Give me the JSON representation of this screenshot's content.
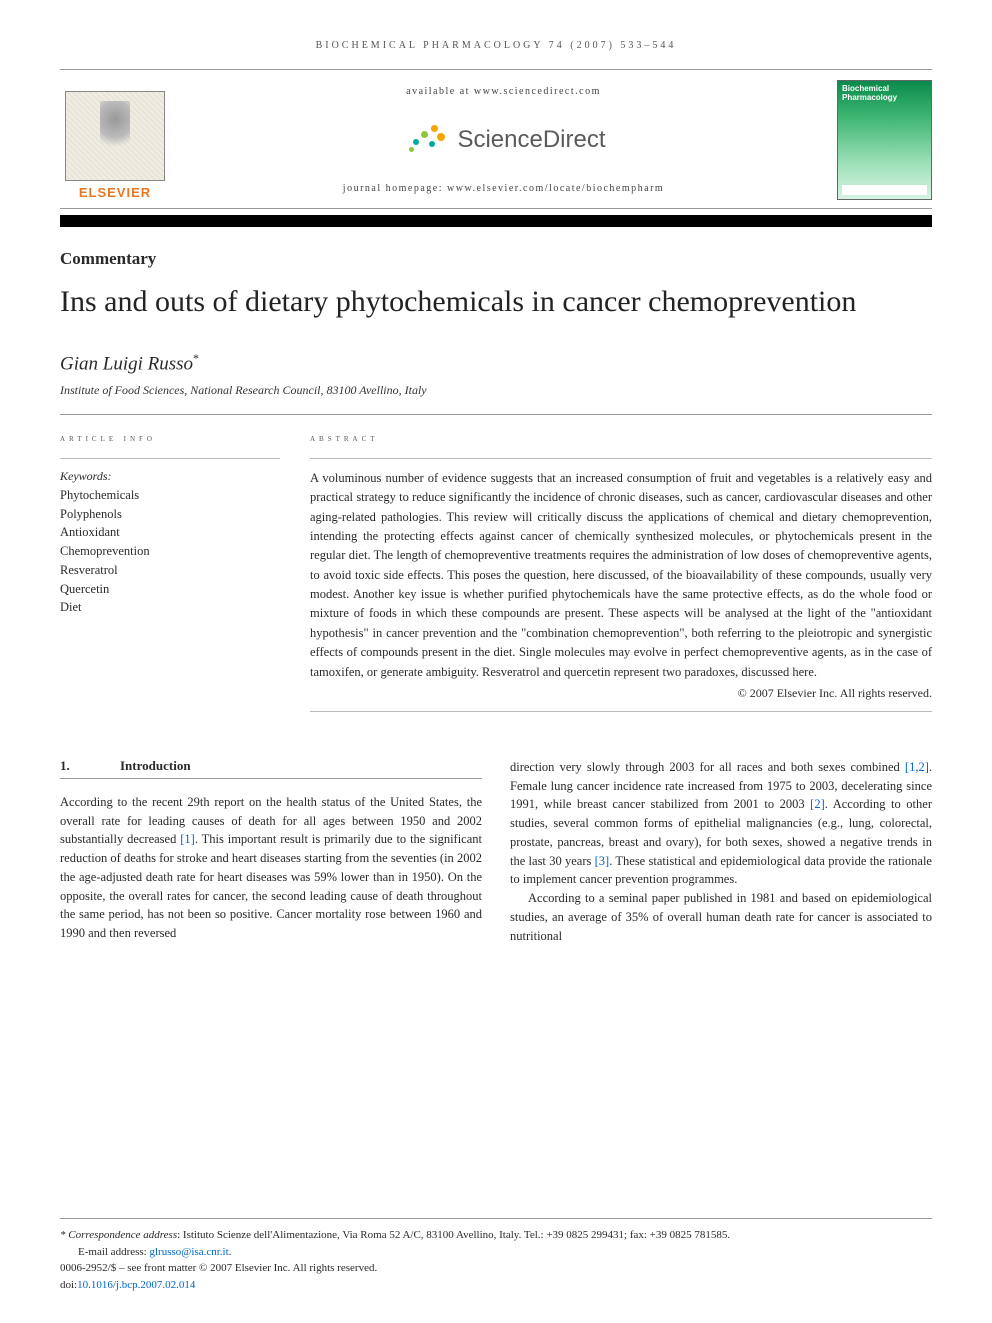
{
  "running_head": "BIOCHEMICAL PHARMACOLOGY 74 (2007) 533–544",
  "header": {
    "available_at": "available at www.sciencedirect.com",
    "sd_brand": "ScienceDirect",
    "homepage": "journal homepage: www.elsevier.com/locate/biochempharm",
    "publisher_word": "ELSEVIER",
    "journal_cover_title": "Biochemical Pharmacology"
  },
  "article": {
    "type": "Commentary",
    "title": "Ins and outs of dietary phytochemicals in cancer chemoprevention",
    "author": "Gian Luigi Russo",
    "author_marker": "*",
    "affiliation": "Institute of Food Sciences, National Research Council, 83100 Avellino, Italy"
  },
  "info": {
    "heading": "article info",
    "kw_label": "Keywords:",
    "keywords": [
      "Phytochemicals",
      "Polyphenols",
      "Antioxidant",
      "Chemoprevention",
      "Resveratrol",
      "Quercetin",
      "Diet"
    ]
  },
  "abstract": {
    "heading": "abstract",
    "text": "A voluminous number of evidence suggests that an increased consumption of fruit and vegetables is a relatively easy and practical strategy to reduce significantly the incidence of chronic diseases, such as cancer, cardiovascular diseases and other aging-related pathologies. This review will critically discuss the applications of chemical and dietary chemoprevention, intending the protecting effects against cancer of chemically synthesized molecules, or phytochemicals present in the regular diet. The length of chemopreventive treatments requires the administration of low doses of chemopreventive agents, to avoid toxic side effects. This poses the question, here discussed, of the bioavailability of these compounds, usually very modest. Another key issue is whether purified phytochemicals have the same protective effects, as do the whole food or mixture of foods in which these compounds are present. These aspects will be analysed at the light of the \"antioxidant hypothesis\" in cancer prevention and the \"combination chemoprevention\", both referring to the pleiotropic and synergistic effects of compounds present in the diet. Single molecules may evolve in perfect chemopreventive agents, as in the case of tamoxifen, or generate ambiguity. Resveratrol and quercetin represent two paradoxes, discussed here.",
    "copyright": "© 2007 Elsevier Inc. All rights reserved."
  },
  "sections": {
    "s1_num": "1.",
    "s1_title": "Introduction",
    "col1_p1_a": "According to the recent 29th report on the health status of the United States, the overall rate for leading causes of death for all ages between 1950 and 2002 substantially decreased ",
    "ref1": "[1]",
    "col1_p1_b": ". This important result is primarily due to the significant reduction of deaths for stroke and heart diseases starting from the seventies (in 2002 the age-adjusted death rate for heart diseases was 59% lower than in 1950). On the opposite, the overall rates for cancer, the second leading cause of death throughout the same period, has not been so positive. Cancer mortality rose between 1960 and 1990 and then reversed",
    "col2_p1_a": "direction very slowly through 2003 for all races and both sexes combined ",
    "ref12": "[1,2]",
    "col2_p1_b": ". Female lung cancer incidence rate increased from 1975 to 2003, decelerating since 1991, while breast cancer stabilized from 2001 to 2003 ",
    "ref2": "[2]",
    "col2_p1_c": ". According to other studies, several common forms of epithelial malignancies (e.g., lung, colorectal, prostate, pancreas, breast and ovary), for both sexes, showed a negative trends in the last 30 years ",
    "ref3": "[3]",
    "col2_p1_d": ". These statistical and epidemiological data provide the rationale to implement cancer prevention programmes.",
    "col2_p2": "According to a seminal paper published in 1981 and based on epidemiological studies, an average of 35% of overall human death rate for cancer is associated to nutritional"
  },
  "footer": {
    "corr_label": "* Correspondence address",
    "corr_text": ": Istituto Scienze dell'Alimentazione, Via Roma 52 A/C, 83100 Avellino, Italy. Tel.: +39 0825 299431; fax: +39 0825 781585.",
    "email_label": "E-mail address: ",
    "email": "glrusso@isa.cnr.it",
    "issn_line": "0006-2952/$ – see front matter © 2007 Elsevier Inc. All rights reserved.",
    "doi_label": "doi:",
    "doi": "10.1016/j.bcp.2007.02.014"
  },
  "colors": {
    "link": "#0066cc",
    "elsevier_orange": "#e87722",
    "cover_green_top": "#0a8a4a"
  }
}
